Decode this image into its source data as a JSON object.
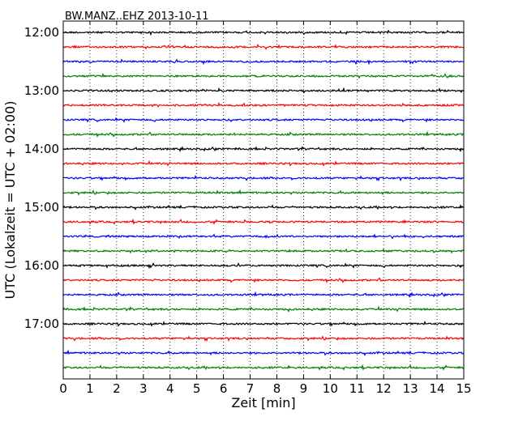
{
  "chart_data": {
    "type": "line",
    "title": "BW.MANZ..EHZ 2013-10-11",
    "xlabel": "Zeit  [min]",
    "ylabel": "UTC (Lokalzeit = UTC + 02:00)",
    "xlim": [
      0,
      15
    ],
    "x_ticks": [
      "0",
      "1",
      "2",
      "3",
      "4",
      "5",
      "6",
      "7",
      "8",
      "9",
      "10",
      "11",
      "12",
      "13",
      "14",
      "15"
    ],
    "y_ticks": [
      "12:00",
      "13:00",
      "14:00",
      "15:00",
      "16:00",
      "17:00"
    ],
    "grid": "vertical dotted",
    "trace_colors": [
      "#000000",
      "#ff0000",
      "#0000ff",
      "#008000"
    ],
    "traces": [
      "12:00",
      "12:15",
      "12:30",
      "12:45",
      "13:00",
      "13:15",
      "13:30",
      "13:45",
      "14:00",
      "14:15",
      "14:30",
      "14:45",
      "15:00",
      "15:15",
      "15:30",
      "15:45",
      "16:00",
      "16:15",
      "16:30",
      "16:45",
      "17:00",
      "17:15",
      "17:30",
      "17:45"
    ]
  }
}
